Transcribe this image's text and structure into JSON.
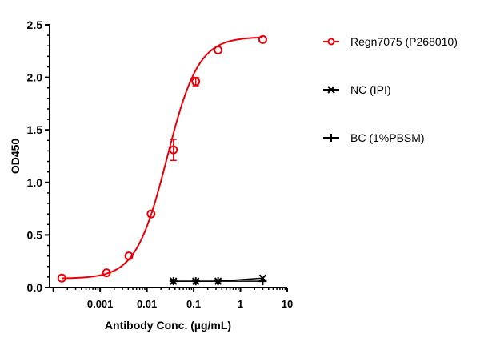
{
  "chart_data": {
    "type": "scatter",
    "xlabel": "Antibody Conc. (µg/mL)",
    "ylabel": "OD450",
    "xscale": "log",
    "xlim": [
      0.0001,
      10
    ],
    "ylim": [
      0,
      2.5
    ],
    "xticks": [
      "0.001",
      "0.01",
      "0.1",
      "1",
      "10"
    ],
    "yticks": [
      "0.0",
      "0.5",
      "1.0",
      "1.5",
      "2.0",
      "2.5"
    ],
    "grid": false,
    "legend_position": "right",
    "series": [
      {
        "name": "Regn7075 (P268010)",
        "color": "#e8000b",
        "marker": "open-circle",
        "fit": "sigmoidal curve",
        "x": [
          0.000152,
          0.00137,
          0.00412,
          0.0123,
          0.037,
          0.111,
          0.333,
          3
        ],
        "y": [
          0.09,
          0.14,
          0.3,
          0.7,
          1.31,
          1.96,
          2.26,
          2.36
        ],
        "error": [
          0,
          0,
          0,
          0,
          0.1,
          0.04,
          0,
          0
        ]
      },
      {
        "name": "NC (IPI)",
        "color": "#000000",
        "marker": "x",
        "x": [
          0.037,
          0.111,
          0.333,
          3
        ],
        "y": [
          0.06,
          0.06,
          0.06,
          0.09
        ]
      },
      {
        "name": "BC (1%PBSM)",
        "color": "#000000",
        "marker": "plus",
        "x": [
          0.037,
          0.111,
          0.333,
          3
        ],
        "y": [
          0.06,
          0.06,
          0.06,
          0.06
        ]
      }
    ]
  }
}
